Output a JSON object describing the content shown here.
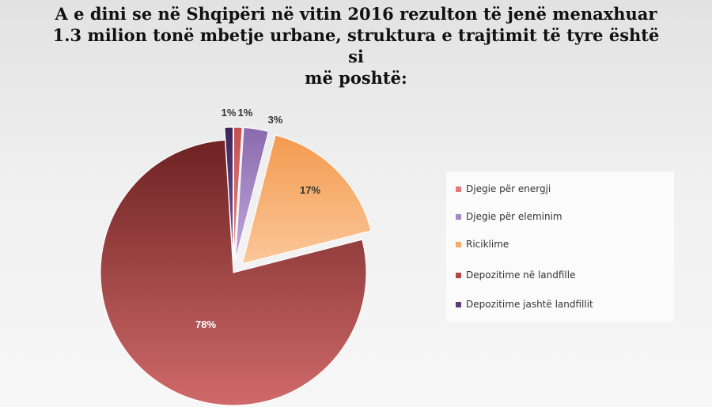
{
  "chart_data": {
    "type": "pie",
    "title_lines": [
      "A e dini se në Shqipëri në vitin 2016 rezulton të jenë menaxhuar",
      "1.3 milion tonë mbetje urbane, struktura e trajtimit të tyre është si",
      "më poshtë:"
    ],
    "legend_position": "right",
    "slices": [
      {
        "name": "Djegie për energji",
        "value": 1,
        "label": "1%",
        "color": "#e07a7a",
        "exploded": true
      },
      {
        "name": "Djegie për eleminim",
        "value": 3,
        "label": "3%",
        "color": "#a488c4",
        "exploded": true
      },
      {
        "name": "Riciklime",
        "value": 17,
        "label": "17%",
        "color": "#f7a96a",
        "exploded": true
      },
      {
        "name": "Depozitime në landfille",
        "value": 78,
        "label": "78%",
        "color": "#b04848",
        "exploded": false
      },
      {
        "name": "Depozitime jashtë landfillit",
        "value": 1,
        "label": "1%",
        "color": "#5e3a7a",
        "exploded": true
      }
    ]
  }
}
